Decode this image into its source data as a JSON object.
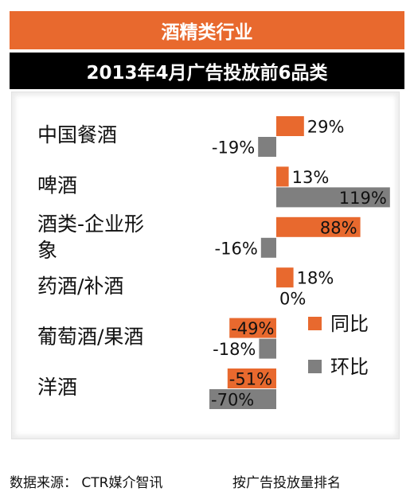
{
  "header": {
    "title": "酒精类行业",
    "subtitle": "2013年4月广告投放前6品类"
  },
  "chart_data": {
    "type": "bar",
    "orientation": "horizontal",
    "categories": [
      [
        "中国餐酒"
      ],
      [
        "啤酒"
      ],
      [
        "酒类-企业形",
        "象"
      ],
      [
        "药酒/补酒"
      ],
      [
        "葡萄酒/果酒"
      ],
      [
        "洋酒"
      ]
    ],
    "series": [
      {
        "name": "同比",
        "values": [
          29,
          13,
          88,
          18,
          -49,
          -51
        ],
        "labels": [
          "29%",
          "13%",
          "88%",
          "18%",
          "-49%",
          "-51%"
        ],
        "color": "#e8692e"
      },
      {
        "name": "环比",
        "values": [
          -19,
          119,
          -16,
          0,
          -18,
          -70
        ],
        "labels": [
          "-19%",
          "119%",
          "-16%",
          "0%",
          "-18%",
          "-70%"
        ],
        "color": "#7f7f7f"
      }
    ],
    "legend_position": "right",
    "grid": false
  },
  "footer": {
    "source": "数据来源： CTR媒介智讯",
    "note": "按广告投放量排名"
  }
}
